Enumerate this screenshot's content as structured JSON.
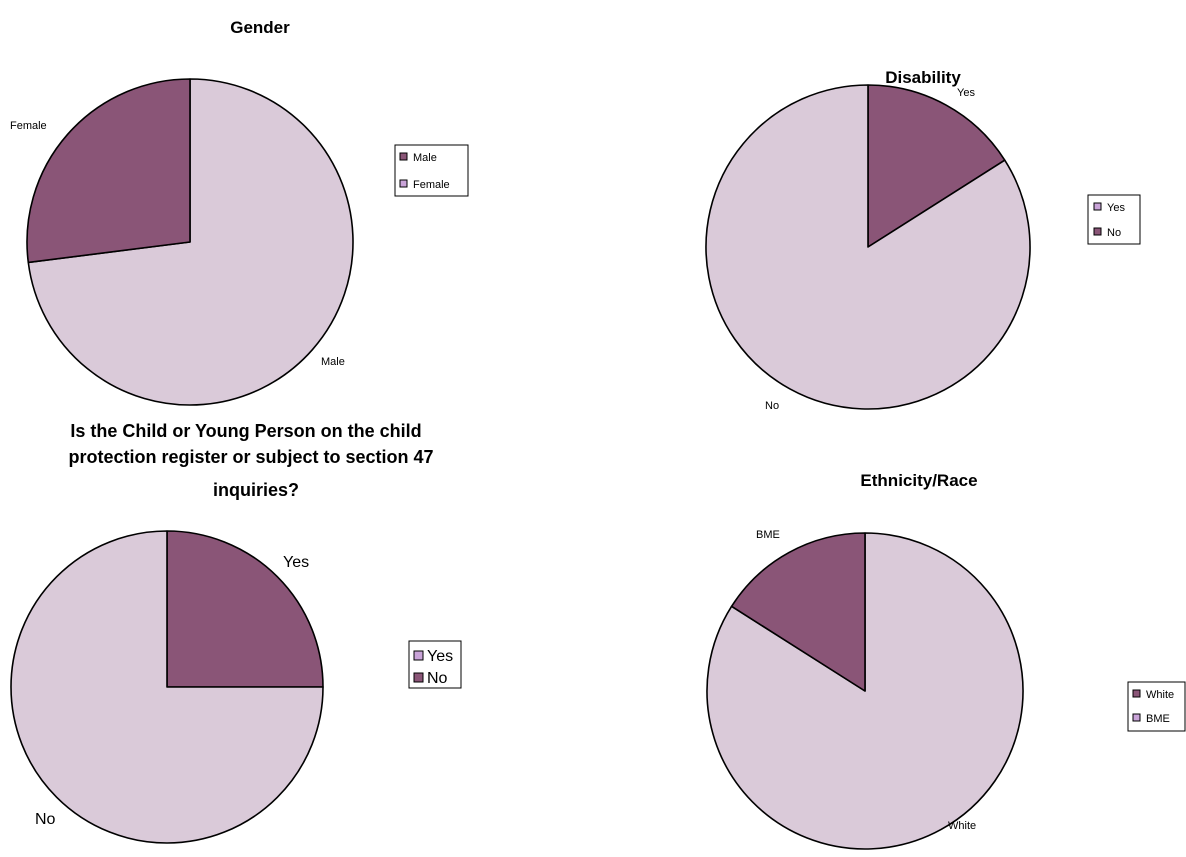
{
  "colors": {
    "dark": "#8a5577",
    "light": "#dacad9",
    "outline": "#000000",
    "legend_swatch_light": "#c9a3d8"
  },
  "chart_data": [
    {
      "type": "pie",
      "title": "Gender",
      "slices": [
        {
          "label": "Male",
          "value": 73,
          "color": "light"
        },
        {
          "label": "Female",
          "value": 27,
          "color": "dark"
        }
      ],
      "legend": [
        {
          "label": "Male",
          "swatch": "dark"
        },
        {
          "label": "Female",
          "swatch": "swatch_light"
        }
      ],
      "legend_placement": "right"
    },
    {
      "type": "pie",
      "title": "Disability",
      "slices": [
        {
          "label": "Yes",
          "value": 16,
          "color": "dark"
        },
        {
          "label": "No",
          "value": 84,
          "color": "light"
        }
      ],
      "legend": [
        {
          "label": "Yes",
          "swatch": "swatch_light"
        },
        {
          "label": "No",
          "swatch": "dark"
        }
      ],
      "legend_placement": "right"
    },
    {
      "type": "pie",
      "title_lines": [
        "Is the Child or Young Person on the child",
        "protection register or subject to section 47",
        "inquiries?"
      ],
      "slices": [
        {
          "label": "Yes",
          "value": 25,
          "color": "dark"
        },
        {
          "label": "No",
          "value": 75,
          "color": "light"
        }
      ],
      "legend": [
        {
          "label": "Yes",
          "swatch": "swatch_light"
        },
        {
          "label": "No",
          "swatch": "dark"
        }
      ],
      "legend_placement": "right"
    },
    {
      "type": "pie",
      "title": "Ethnicity/Race",
      "slices": [
        {
          "label": "White",
          "value": 84,
          "color": "light"
        },
        {
          "label": "BME",
          "value": 16,
          "color": "dark"
        }
      ],
      "legend": [
        {
          "label": "White",
          "swatch": "dark"
        },
        {
          "label": "BME",
          "swatch": "swatch_light"
        }
      ],
      "legend_placement": "right"
    }
  ]
}
